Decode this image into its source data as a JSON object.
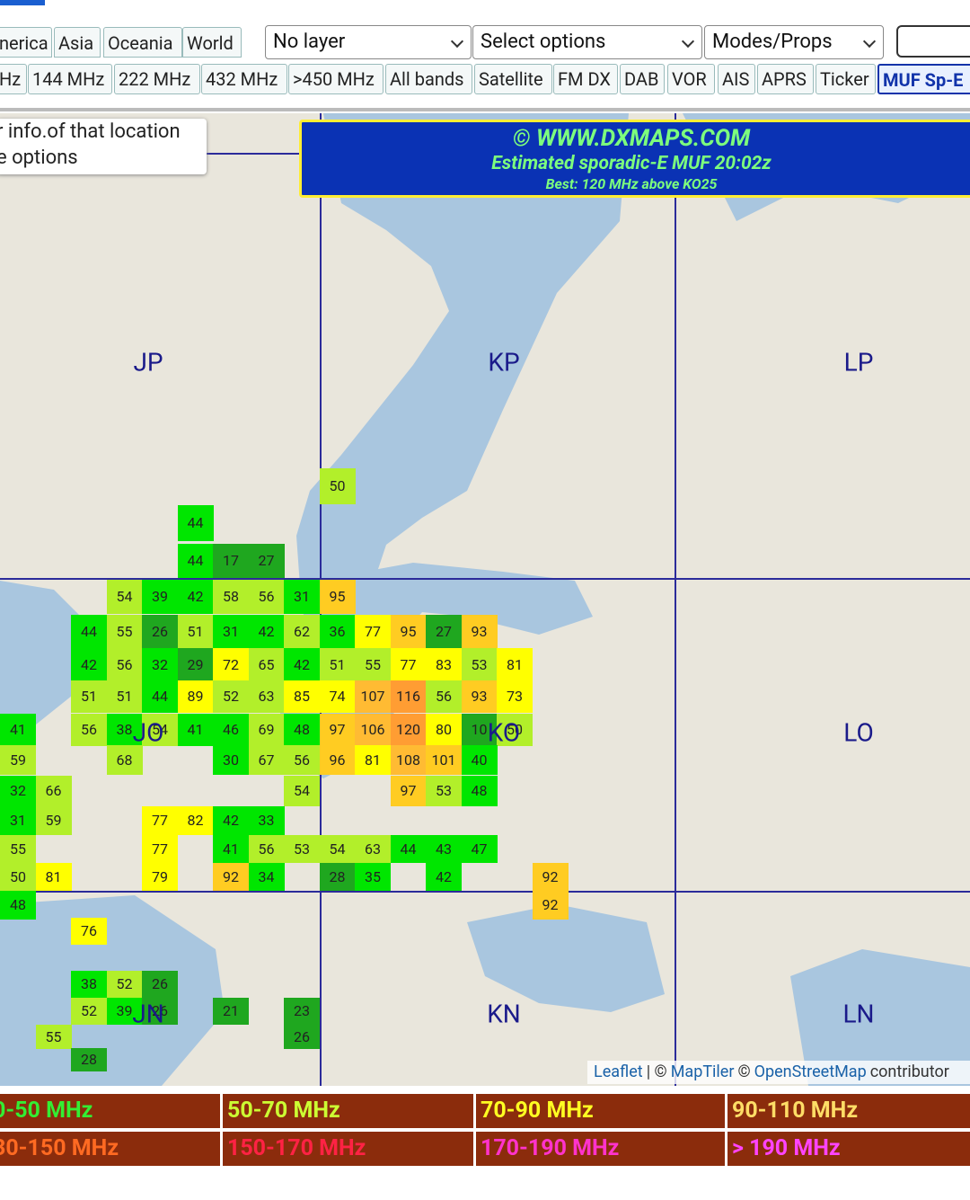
{
  "nav": {
    "regions": [
      "nerica",
      "Asia",
      "Oceania",
      "World"
    ],
    "selects": [
      "No layer",
      "Select options",
      "Modes/Props"
    ],
    "bands": [
      "Hz",
      "144 MHz",
      "222 MHz",
      "432 MHz",
      ">450 MHz",
      "All bands",
      "Satellite",
      "FM DX",
      "DAB",
      "VOR",
      "AIS",
      "APRS",
      "Ticker",
      "MUF Sp-E"
    ]
  },
  "info_box": [
    "r info.of that location",
    "e options"
  ],
  "title_box": {
    "site": "© WWW.DXMAPS.COM",
    "title": "Estimated sporadic-E MUF 20:02z",
    "best": "Best: 120 MHz above KO25"
  },
  "map": {
    "grid_labels": [
      "JP",
      "KP",
      "LP",
      "JO",
      "KO",
      "LO",
      "JN",
      "KN",
      "LN"
    ],
    "rows": [
      [
        null,
        null,
        null,
        null,
        null,
        null,
        null,
        null,
        null,
        50,
        null,
        null,
        null,
        null,
        null,
        null
      ],
      [
        null,
        null,
        null,
        null,
        null,
        44,
        null,
        null,
        null,
        null,
        null,
        null,
        null,
        null,
        null,
        null
      ],
      [
        null,
        null,
        null,
        null,
        null,
        44,
        17,
        27,
        null,
        null,
        null,
        null,
        null,
        null,
        null,
        null
      ],
      [
        null,
        null,
        null,
        54,
        39,
        42,
        58,
        56,
        31,
        95,
        null,
        null,
        null,
        null,
        null,
        null
      ],
      [
        null,
        null,
        44,
        55,
        26,
        51,
        31,
        42,
        62,
        36,
        77,
        95,
        27,
        93,
        null,
        null
      ],
      [
        null,
        null,
        42,
        56,
        32,
        29,
        72,
        65,
        42,
        51,
        55,
        77,
        83,
        53,
        81,
        null
      ],
      [
        null,
        null,
        51,
        51,
        44,
        89,
        52,
        63,
        85,
        74,
        107,
        116,
        56,
        93,
        73,
        null
      ],
      [
        41,
        null,
        56,
        38,
        54,
        41,
        46,
        69,
        48,
        97,
        106,
        120,
        80,
        10,
        50,
        null
      ],
      [
        59,
        null,
        null,
        68,
        null,
        null,
        30,
        67,
        56,
        96,
        81,
        108,
        101,
        40,
        null,
        null
      ],
      [
        32,
        66,
        null,
        null,
        null,
        null,
        null,
        null,
        54,
        null,
        null,
        97,
        53,
        48,
        null,
        null
      ],
      [
        31,
        59,
        null,
        null,
        77,
        82,
        42,
        33,
        null,
        null,
        null,
        null,
        null,
        null,
        null,
        null
      ],
      [
        55,
        null,
        null,
        null,
        77,
        null,
        41,
        56,
        53,
        54,
        63,
        44,
        43,
        47,
        null,
        null
      ],
      [
        50,
        81,
        null,
        null,
        79,
        null,
        92,
        34,
        null,
        28,
        35,
        null,
        42,
        null,
        null,
        92
      ],
      [
        48,
        null,
        null,
        null,
        null,
        null,
        null,
        null,
        null,
        null,
        null,
        null,
        null,
        null,
        null,
        92
      ],
      [
        null,
        null,
        76,
        null,
        null,
        null,
        null,
        null,
        null,
        null,
        null,
        null,
        null,
        null,
        null,
        null
      ],
      [
        null,
        null,
        38,
        52,
        26,
        null,
        null,
        null,
        null,
        null,
        null,
        null,
        null,
        null,
        null,
        null
      ],
      [
        null,
        null,
        52,
        39,
        26,
        null,
        21,
        null,
        23,
        null,
        null,
        null,
        null,
        null,
        null,
        null
      ],
      [
        null,
        55,
        null,
        null,
        null,
        null,
        null,
        null,
        26,
        null,
        null,
        null,
        null,
        null,
        null,
        null
      ],
      [
        null,
        null,
        28,
        null,
        null,
        null,
        null,
        null,
        null,
        null,
        null,
        null,
        null,
        null,
        null,
        null
      ]
    ],
    "attribution": [
      "Leaflet",
      "| ©",
      "MapTiler",
      "©",
      "OpenStreetMap",
      "contributor"
    ]
  },
  "legend": [
    {
      "label": "0-50 MHz",
      "color": "#33ee33"
    },
    {
      "label": "50-70 MHz",
      "color": "#ccff33"
    },
    {
      "label": "70-90 MHz",
      "color": "#ffff22"
    },
    {
      "label": "90-110 MHz",
      "color": "#ffdd66"
    },
    {
      "label": "30-150 MHz",
      "color": "#ff6a22"
    },
    {
      "label": "150-170 MHz",
      "color": "#ff2244"
    },
    {
      "label": "170-190 MHz",
      "color": "#ff33cc"
    },
    {
      "label": "> 190 MHz",
      "color": "#ff44ff"
    }
  ]
}
